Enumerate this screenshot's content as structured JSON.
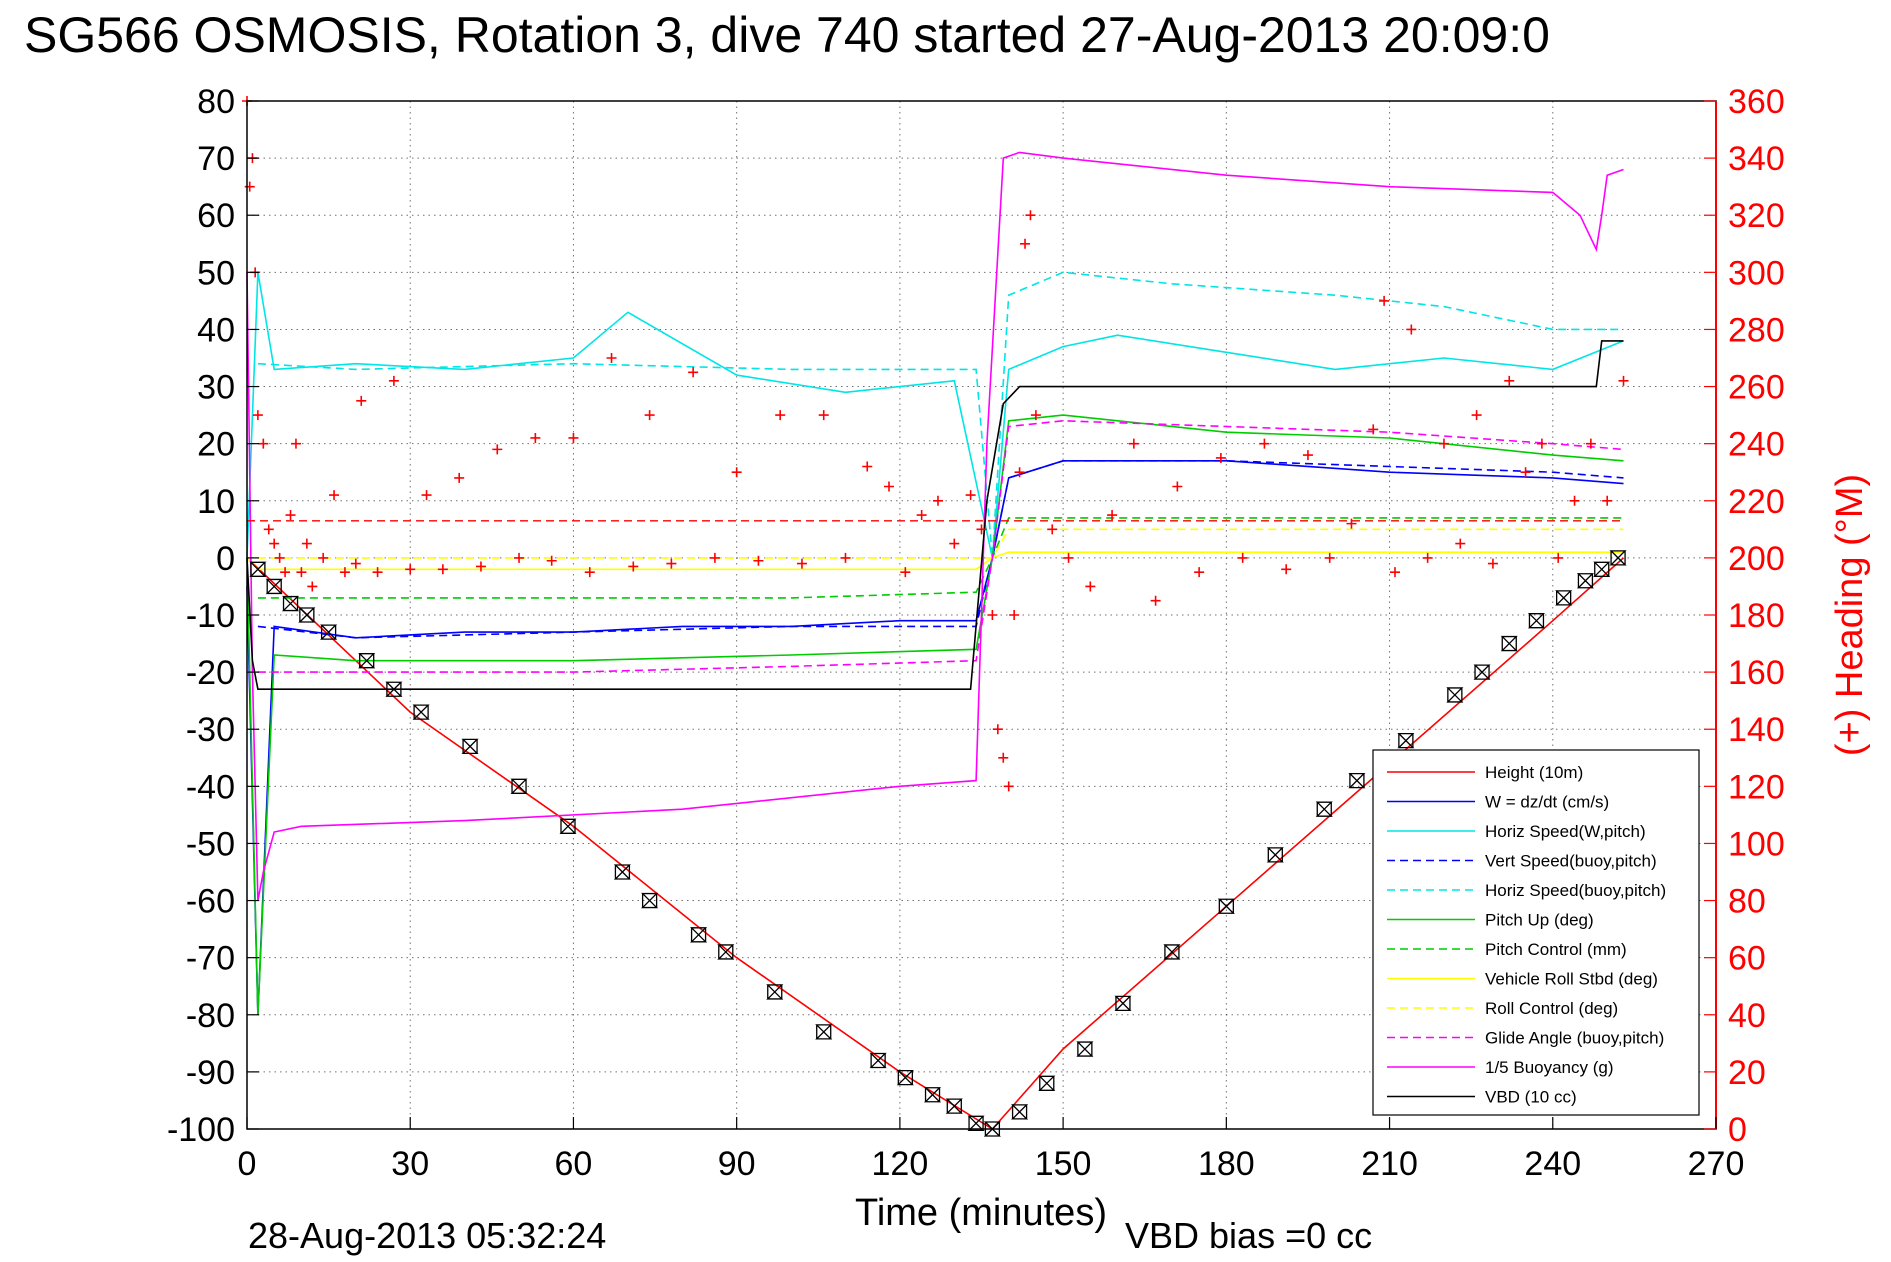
{
  "figure": {
    "title": "SG566 OSMOSIS, Rotation 3, dive 740 started 27-Aug-2013 20:09:0",
    "footer_left": "28-Aug-2013 05:32:24",
    "footer_right": "VBD bias =0 cc"
  },
  "chart_data": {
    "type": "line",
    "xlabel": "Time (minutes)",
    "ylabel": "",
    "y2label": "(+) Heading (°M)",
    "xlim": [
      0,
      270
    ],
    "ylim": [
      -100,
      80
    ],
    "y2lim": [
      0,
      360
    ],
    "grid": true,
    "legend_position": "bottom-right",
    "xticks": [
      "0",
      "30",
      "60",
      "90",
      "120",
      "150",
      "180",
      "210",
      "240",
      "270"
    ],
    "yticks": [
      "80",
      "70",
      "60",
      "50",
      "40",
      "30",
      "20",
      "10",
      "0",
      "-10",
      "-20",
      "-30",
      "-40",
      "-50",
      "-60",
      "-70",
      "-80",
      "-90",
      "-100"
    ],
    "y2ticks": [
      "360",
      "340",
      "320",
      "300",
      "280",
      "260",
      "240",
      "220",
      "200",
      "180",
      "160",
      "140",
      "120",
      "100",
      "80",
      "60",
      "40",
      "20",
      "0"
    ],
    "colors": {
      "red": "#ff0000",
      "blue": "#0000ff",
      "cyan": "#00e5e5",
      "green": "#00cc00",
      "yellow": "#ffff00",
      "magenta": "#ff00ff",
      "black": "#000000"
    },
    "series": [
      {
        "name": "Height (10m)",
        "color": "red",
        "style": "solid",
        "x": [
          0,
          30,
          60,
          90,
          120,
          137,
          150,
          180,
          210,
          240,
          253
        ],
        "y": [
          0,
          -27,
          -47,
          -70,
          -90,
          -100,
          -86,
          -61,
          -36,
          -11,
          0
        ]
      },
      {
        "name": "W = dz/dt (cm/s)",
        "color": "blue",
        "style": "solid",
        "x": [
          0,
          2,
          5,
          20,
          40,
          60,
          80,
          100,
          120,
          134,
          137,
          140,
          150,
          180,
          210,
          240,
          253
        ],
        "y": [
          -5,
          -80,
          -12,
          -14,
          -13,
          -13,
          -12,
          -12,
          -11,
          -11,
          0,
          14,
          17,
          17,
          15,
          14,
          13
        ]
      },
      {
        "name": "Horiz Speed(W,pitch)",
        "color": "cyan",
        "style": "solid",
        "x": [
          0,
          2,
          5,
          20,
          40,
          60,
          70,
          90,
          110,
          130,
          137,
          140,
          150,
          160,
          180,
          200,
          220,
          240,
          253
        ],
        "y": [
          0,
          50,
          33,
          34,
          33,
          35,
          43,
          32,
          29,
          31,
          0,
          33,
          37,
          39,
          36,
          33,
          35,
          33,
          38
        ]
      },
      {
        "name": "Vert Speed(buoy,pitch)",
        "color": "blue",
        "style": "dashed",
        "x": [
          2,
          20,
          60,
          100,
          134,
          137,
          140,
          150,
          180,
          210,
          240,
          253
        ],
        "y": [
          -12,
          -14,
          -13,
          -12,
          -12,
          0,
          14,
          17,
          17,
          16,
          15,
          14
        ]
      },
      {
        "name": "Horiz Speed(buoy,pitch)",
        "color": "cyan",
        "style": "dashed",
        "x": [
          2,
          20,
          60,
          100,
          134,
          137,
          140,
          150,
          170,
          200,
          220,
          240,
          253
        ],
        "y": [
          34,
          33,
          34,
          33,
          33,
          0,
          46,
          50,
          48,
          46,
          44,
          40,
          40
        ]
      },
      {
        "name": "Pitch Up (deg)",
        "color": "green",
        "style": "solid",
        "x": [
          0,
          2,
          5,
          20,
          60,
          100,
          134,
          137,
          140,
          150,
          180,
          210,
          240,
          253
        ],
        "y": [
          0,
          -80,
          -17,
          -18,
          -18,
          -17,
          -16,
          0,
          24,
          25,
          22,
          21,
          18,
          17
        ]
      },
      {
        "name": "Pitch Control (mm)",
        "color": "green",
        "style": "dashed",
        "x": [
          2,
          20,
          60,
          100,
          134,
          137,
          140,
          160,
          200,
          240,
          253
        ],
        "y": [
          -7,
          -7,
          -7,
          -7,
          -6,
          0,
          7,
          7,
          7,
          7,
          7
        ]
      },
      {
        "name": "Vehicle Roll Stbd (deg)",
        "color": "yellow",
        "style": "solid",
        "x": [
          0,
          2,
          20,
          60,
          100,
          134,
          137,
          140,
          180,
          220,
          253
        ],
        "y": [
          0,
          -2,
          -2,
          -2,
          -2,
          -2,
          0,
          1,
          1,
          1,
          1
        ]
      },
      {
        "name": "Roll Control (deg)",
        "color": "yellow",
        "style": "dashed",
        "x": [
          2,
          40,
          80,
          134,
          137,
          140,
          180,
          220,
          253
        ],
        "y": [
          0,
          0,
          0,
          0,
          0,
          5,
          5,
          5,
          5
        ]
      },
      {
        "name": "Glide Angle (buoy,pitch)",
        "color": "magenta",
        "style": "dashed",
        "x": [
          2,
          20,
          60,
          100,
          134,
          137,
          140,
          150,
          180,
          210,
          240,
          253
        ],
        "y": [
          -20,
          -20,
          -20,
          -19,
          -18,
          0,
          23,
          24,
          23,
          22,
          20,
          19
        ]
      },
      {
        "name": "1/5 Buoyancy (g)",
        "color": "magenta",
        "style": "solid",
        "x": [
          0,
          1,
          2,
          3,
          5,
          10,
          40,
          80,
          120,
          134,
          136,
          139,
          142,
          150,
          180,
          210,
          240,
          245,
          248,
          249,
          250,
          253
        ],
        "y": [
          50,
          -20,
          -60,
          -55,
          -48,
          -47,
          -46,
          -44,
          -40,
          -39,
          20,
          70,
          71,
          70,
          67,
          65,
          64,
          60,
          54,
          60,
          67,
          68
        ]
      },
      {
        "name": "VBD (10 cc)",
        "color": "black",
        "style": "solid",
        "x": [
          0,
          1,
          2,
          40,
          80,
          120,
          133,
          136,
          139,
          142,
          180,
          220,
          248,
          249,
          253
        ],
        "y": [
          0,
          -18,
          -23,
          -23,
          -23,
          -23,
          -23,
          10,
          27,
          30,
          30,
          30,
          30,
          38,
          38
        ]
      }
    ],
    "heading": {
      "name": "(+) Heading",
      "color": "red",
      "marker": "+",
      "mean_deg": 213,
      "x": [
        0,
        0.5,
        1,
        1.5,
        2,
        3,
        4,
        5,
        6,
        7,
        8,
        9,
        10,
        11,
        12,
        14,
        16,
        18,
        20,
        21,
        24,
        27,
        30,
        33,
        36,
        39,
        43,
        46,
        50,
        53,
        56,
        60,
        63,
        67,
        71,
        74,
        78,
        82,
        86,
        90,
        94,
        98,
        102,
        106,
        110,
        114,
        118,
        121,
        124,
        127,
        130,
        133,
        135,
        137,
        138,
        139,
        140,
        141,
        142,
        143,
        144,
        145,
        148,
        151,
        155,
        159,
        163,
        167,
        171,
        175,
        179,
        183,
        187,
        191,
        195,
        199,
        203,
        207,
        209,
        211,
        214,
        217,
        220,
        223,
        226,
        229,
        232,
        235,
        238,
        241,
        244,
        247,
        250,
        253
      ],
      "y": [
        360,
        330,
        340,
        300,
        250,
        240,
        210,
        205,
        200,
        195,
        215,
        240,
        195,
        205,
        190,
        200,
        222,
        195,
        198,
        255,
        195,
        262,
        196,
        222,
        196,
        228,
        197,
        238,
        200,
        242,
        199,
        242,
        195,
        270,
        197,
        250,
        198,
        265,
        200,
        230,
        199,
        250,
        198,
        250,
        200,
        232,
        225,
        195,
        215,
        220,
        205,
        222,
        210,
        180,
        140,
        130,
        120,
        180,
        230,
        310,
        320,
        250,
        210,
        200,
        190,
        215,
        240,
        185,
        225,
        195,
        235,
        200,
        240,
        196,
        236,
        200,
        212,
        245,
        290,
        195,
        280,
        200,
        240,
        205,
        250,
        198,
        262,
        230,
        240,
        200,
        220,
        240,
        220,
        262
      ]
    },
    "profile_markers": {
      "marker": "hourglass",
      "color": "black",
      "x": [
        2,
        5,
        8,
        11,
        15,
        22,
        27,
        32,
        41,
        50,
        59,
        69,
        74,
        83,
        88,
        97,
        106,
        116,
        121,
        126,
        130,
        134,
        137,
        142,
        147,
        154,
        161,
        170,
        180,
        189,
        198,
        204,
        213,
        222,
        227,
        232,
        237,
        242,
        246,
        249,
        252
      ],
      "y": [
        -2,
        -5,
        -8,
        -10,
        -13,
        -18,
        -23,
        -27,
        -33,
        -40,
        -47,
        -55,
        -60,
        -66,
        -69,
        -76,
        -83,
        -88,
        -91,
        -94,
        -96,
        -99,
        -100,
        -97,
        -92,
        -86,
        -78,
        -69,
        -61,
        -52,
        -44,
        -39,
        -32,
        -24,
        -20,
        -15,
        -11,
        -7,
        -4,
        -2,
        0
      ]
    }
  }
}
